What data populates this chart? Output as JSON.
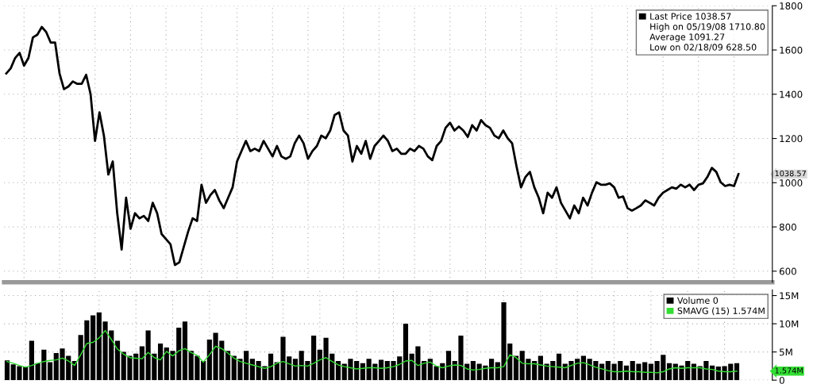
{
  "chart_data": [
    {
      "type": "line",
      "categories": [
        null,
        null,
        null,
        null,
        null,
        null,
        null,
        null,
        null,
        null,
        null,
        null,
        null,
        null,
        null,
        null,
        null,
        null,
        null,
        null,
        null,
        null,
        null,
        null,
        null,
        null,
        null,
        null,
        null,
        null,
        null,
        null,
        null,
        null,
        null,
        null,
        null,
        null,
        null,
        null,
        null,
        null,
        null,
        null,
        null,
        null,
        null,
        null,
        null,
        null,
        null,
        null,
        null,
        null,
        null,
        null,
        null,
        null,
        null,
        null,
        null,
        null,
        null,
        null,
        null,
        null,
        null,
        null,
        null,
        null,
        null,
        null,
        null,
        null,
        null,
        null,
        null,
        null,
        null,
        null,
        null,
        null,
        null,
        null,
        null,
        null,
        null,
        null,
        null,
        null,
        null,
        null,
        null,
        null,
        null,
        null,
        null,
        null,
        null,
        null,
        null,
        null,
        null,
        null,
        null,
        null,
        null,
        null,
        null,
        null,
        null,
        null,
        null,
        null,
        null,
        null,
        null,
        null,
        null,
        null,
        null,
        null,
        null,
        null,
        null,
        null,
        null,
        null,
        null,
        null,
        null,
        null,
        null,
        null,
        null,
        null,
        null,
        null,
        null,
        null,
        null,
        null,
        null,
        null,
        null,
        null,
        null,
        null,
        null,
        null,
        null,
        null,
        null,
        null,
        null,
        null,
        null,
        null,
        null,
        null,
        null,
        null,
        null,
        null,
        null,
        null
      ],
      "series": [
        {
          "name": "Last Price 1038.57",
          "color": "#000000",
          "values": [
            1494,
            1517,
            1564,
            1587,
            1529,
            1564,
            1657,
            1669,
            1704,
            1681,
            1634,
            1634,
            1494,
            1423,
            1435,
            1458,
            1447,
            1447,
            1488,
            1400,
            1189,
            1318,
            1213,
            1037,
            1096,
            862,
            698,
            932,
            792,
            862,
            839,
            850,
            827,
            909,
            862,
            768,
            745,
            722,
            628,
            640,
            710,
            780,
            839,
            827,
            991,
            909,
            944,
            967,
            920,
            885,
            932,
            979,
            1096,
            1143,
            1189,
            1143,
            1154,
            1143,
            1189,
            1154,
            1119,
            1166,
            1119,
            1108,
            1119,
            1178,
            1213,
            1178,
            1108,
            1143,
            1166,
            1213,
            1201,
            1236,
            1306,
            1318,
            1236,
            1213,
            1096,
            1166,
            1131,
            1189,
            1108,
            1166,
            1189,
            1213,
            1189,
            1143,
            1154,
            1131,
            1131,
            1154,
            1143,
            1166,
            1154,
            1119,
            1102,
            1166,
            1189,
            1248,
            1271,
            1236,
            1254,
            1236,
            1207,
            1260,
            1236,
            1283,
            1260,
            1248,
            1213,
            1201,
            1236,
            1201,
            1178,
            1073,
            979,
            1026,
            1049,
            979,
            932,
            862,
            955,
            932,
            979,
            909,
            874,
            839,
            897,
            862,
            932,
            897,
            955,
            1002,
            991,
            991,
            997,
            979,
            932,
            938,
            885,
            874,
            885,
            897,
            920,
            909,
            897,
            932,
            955,
            967,
            979,
            973,
            991,
            979,
            991,
            967,
            991,
            997,
            1026,
            1067,
            1049,
            1002,
            985,
            991,
            985,
            1039
          ]
        }
      ],
      "ylim": [
        550,
        1800
      ],
      "yticks": [
        600,
        800,
        1000,
        1200,
        1400,
        1600,
        1800
      ],
      "tick_labels": "y",
      "grid": true,
      "legend": "top right",
      "annotations": [
        "High on 05/19/08 1710.80",
        "Average 1091.27",
        "Low on 02/18/09 628.50",
        "1038.57"
      ]
    },
    {
      "type": "bar",
      "categories": [
        null,
        null,
        null,
        null,
        null,
        null,
        null,
        null,
        null,
        null,
        null,
        null,
        null,
        null,
        null,
        null,
        null,
        null,
        null,
        null,
        null,
        null,
        null,
        null,
        null,
        null,
        null,
        null,
        null,
        null,
        null,
        null,
        null,
        null,
        null,
        null,
        null,
        null,
        null,
        null,
        null,
        null,
        null,
        null,
        null,
        null,
        null,
        null,
        null,
        null,
        null,
        null,
        null,
        null,
        null,
        null,
        null,
        null,
        null,
        null,
        null,
        null,
        null,
        null,
        null,
        null,
        null,
        null,
        null,
        null,
        null,
        null,
        null,
        null,
        null,
        null,
        null,
        null,
        null,
        null,
        null,
        null,
        null,
        null,
        null,
        null,
        null,
        null,
        null,
        null,
        null,
        null,
        null,
        null,
        null,
        null,
        null,
        null,
        null,
        null,
        null,
        null,
        null,
        null,
        null,
        null,
        null,
        null,
        null,
        null,
        null,
        null,
        null,
        null,
        null,
        null,
        null,
        null,
        null,
        null
      ],
      "series": [
        {
          "name": "Volume 0",
          "color": "#000000",
          "values": [
            3.5,
            2.8,
            2.5,
            2.4,
            7.0,
            3.0,
            5.4,
            3.2,
            4.8,
            5.6,
            4.3,
            3.4,
            8.0,
            10.6,
            11.5,
            12.0,
            10.4,
            8.8,
            7.0,
            5.0,
            4.3,
            4.7,
            6.0,
            8.8,
            4.7,
            6.5,
            5.8,
            5.2,
            9.3,
            10.4,
            5.2,
            4.3,
            3.4,
            7.2,
            8.4,
            7.0,
            5.2,
            4.3,
            3.8,
            5.2,
            3.8,
            3.4,
            2.5,
            4.7,
            3.2,
            7.7,
            4.2,
            3.8,
            5.2,
            3.4,
            7.9,
            5.4,
            7.5,
            4.7,
            3.4,
            2.9,
            3.8,
            3.4,
            3.0,
            3.8,
            2.9,
            3.6,
            3.4,
            3.4,
            4.2,
            10.0,
            4.7,
            6.0,
            3.4,
            3.8,
            2.5,
            3.0,
            5.2,
            3.4,
            7.9,
            2.9,
            3.4,
            2.9,
            2.6,
            3.8,
            3.2,
            13.8,
            6.5,
            4.3,
            5.2,
            3.8,
            3.4,
            4.3,
            2.9,
            3.4,
            4.7,
            2.9,
            3.4,
            3.8,
            4.3,
            3.8,
            3.4,
            2.9,
            3.4,
            2.9,
            3.4,
            2.6,
            3.4,
            2.9,
            3.2,
            2.9,
            3.4,
            4.5,
            3.0,
            2.9,
            2.6,
            3.4,
            2.9,
            2.5,
            3.4,
            2.6,
            2.4,
            2.5,
            2.9,
            3.0
          ]
        },
        {
          "name": "SMAVG (15) 1.574M",
          "type": "line",
          "color": "#33dd33",
          "values": [
            3.3,
            3.0,
            2.6,
            2.3,
            2.6,
            3.0,
            3.3,
            3.5,
            3.6,
            3.9,
            3.4,
            2.6,
            4.5,
            6.5,
            6.7,
            7.5,
            8.8,
            7.2,
            5.5,
            4.6,
            4.0,
            3.9,
            3.8,
            4.9,
            4.0,
            3.6,
            5.1,
            4.3,
            5.2,
            5.6,
            4.9,
            4.4,
            3.2,
            4.5,
            6.0,
            5.6,
            4.8,
            3.9,
            3.3,
            3.0,
            2.7,
            2.4,
            2.1,
            2.4,
            3.0,
            3.3,
            2.9,
            2.5,
            2.6,
            2.5,
            3.0,
            3.6,
            4.0,
            3.3,
            2.7,
            2.4,
            2.2,
            2.0,
            2.1,
            2.2,
            2.2,
            2.1,
            2.2,
            2.4,
            2.8,
            3.4,
            3.5,
            2.6,
            3.0,
            3.2,
            2.5,
            2.2,
            2.5,
            2.7,
            2.6,
            2.0,
            1.8,
            1.9,
            2.1,
            2.2,
            2.2,
            2.4,
            4.5,
            4.0,
            3.0,
            2.9,
            2.9,
            2.7,
            2.5,
            2.4,
            2.3,
            2.2,
            2.6,
            3.0,
            3.1,
            2.7,
            2.3,
            2.0,
            1.7,
            1.5,
            1.5,
            1.6,
            1.5,
            1.5,
            1.4,
            1.4,
            1.3,
            1.5,
            2.0,
            2.2,
            2.1,
            2.2,
            2.2,
            2.2,
            2.0,
            1.9,
            1.6,
            1.5,
            1.5,
            1.6
          ]
        }
      ],
      "ylim": [
        0,
        16
      ],
      "yticks": [
        0,
        {
          "value": 5,
          "label": "5M"
        },
        {
          "value": 10,
          "label": "10M"
        },
        {
          "value": 15,
          "label": "15M"
        }
      ],
      "tick_labels": "y",
      "grid": true,
      "legend": "top right",
      "annotations": [
        "1.574M"
      ]
    }
  ]
}
